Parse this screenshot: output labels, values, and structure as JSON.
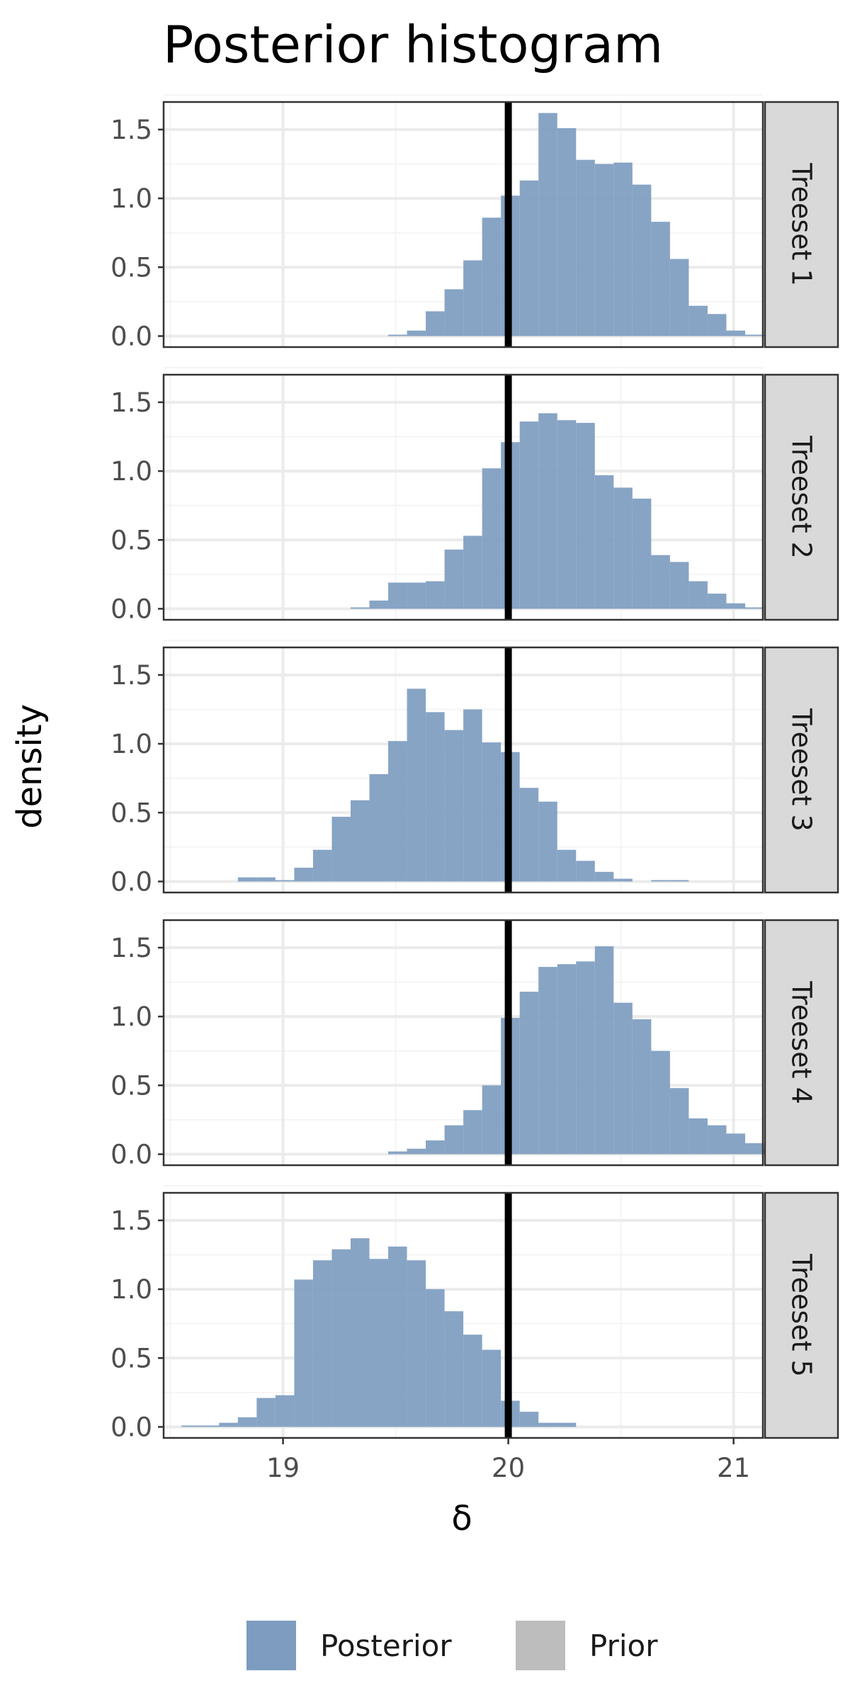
{
  "chart_data": {
    "type": "bar",
    "title": "Posterior histogram",
    "xlabel": "δ",
    "ylabel": "density",
    "xlim": [
      18.47,
      21.13
    ],
    "ylim": [
      -0.08,
      1.7
    ],
    "x_ticks": [
      "19",
      "20",
      "21"
    ],
    "y_ticks": [
      "0.0",
      "0.5",
      "1.0",
      "1.5"
    ],
    "grid": true,
    "reference_line": 20,
    "legend_position": "bottom",
    "legend": [
      {
        "name": "Posterior",
        "color": "#7d9cc0"
      },
      {
        "name": "Prior",
        "color": "#bdbdbd"
      }
    ],
    "bin_start": 18.466,
    "bin_width": 0.0834,
    "panels": [
      {
        "label": "Treeset 1",
        "densities": [
          0,
          0,
          0,
          0,
          0,
          0,
          0,
          0,
          0,
          0,
          0,
          0,
          0.01,
          0.04,
          0.18,
          0.34,
          0.55,
          0.86,
          1.02,
          1.13,
          1.62,
          1.51,
          1.28,
          1.25,
          1.26,
          1.1,
          0.83,
          0.56,
          0.22,
          0.16,
          0.04,
          0.01,
          0.01,
          0,
          0,
          0
        ]
      },
      {
        "label": "Treeset 2",
        "densities": [
          0,
          0,
          0,
          0,
          0,
          0,
          0,
          0,
          0,
          0,
          0.01,
          0.06,
          0.19,
          0.19,
          0.2,
          0.43,
          0.53,
          1.02,
          1.21,
          1.36,
          1.42,
          1.37,
          1.35,
          0.97,
          0.88,
          0.8,
          0.39,
          0.34,
          0.2,
          0.11,
          0.04,
          0.01,
          0,
          0.01,
          0,
          0
        ]
      },
      {
        "label": "Treeset 3",
        "densities": [
          0,
          0,
          0,
          0,
          0.03,
          0.03,
          0.01,
          0.1,
          0.23,
          0.47,
          0.59,
          0.78,
          1.02,
          1.4,
          1.23,
          1.1,
          1.25,
          1.01,
          0.94,
          0.68,
          0.58,
          0.23,
          0.15,
          0.07,
          0.02,
          0,
          0.01,
          0.01,
          0,
          0,
          0,
          0,
          0,
          0,
          0,
          0
        ]
      },
      {
        "label": "Treeset 4",
        "densities": [
          0,
          0,
          0,
          0,
          0,
          0,
          0,
          0,
          0,
          0,
          0,
          0,
          0.02,
          0.04,
          0.1,
          0.21,
          0.32,
          0.5,
          0.99,
          1.18,
          1.36,
          1.38,
          1.4,
          1.51,
          1.1,
          0.98,
          0.75,
          0.48,
          0.26,
          0.21,
          0.15,
          0.08,
          0.04,
          0.02,
          0.01,
          0
        ]
      },
      {
        "label": "Treeset 5",
        "densities": [
          0,
          0.01,
          0.01,
          0.03,
          0.07,
          0.21,
          0.23,
          1.07,
          1.21,
          1.29,
          1.37,
          1.22,
          1.31,
          1.21,
          1.0,
          0.84,
          0.67,
          0.56,
          0.19,
          0.11,
          0.03,
          0.03,
          0,
          0,
          0,
          0,
          0,
          0,
          0,
          0,
          0,
          0,
          0,
          0,
          0,
          0
        ]
      }
    ]
  },
  "colors": {
    "posterior": "#7d9cc0",
    "prior": "#bdbdbd",
    "strip_bg": "#d9d9d9",
    "grid_major": "#ebebeb",
    "grid_minor": "#f4f4f4",
    "panel_border": "#333333",
    "reference_line": "#000000"
  }
}
